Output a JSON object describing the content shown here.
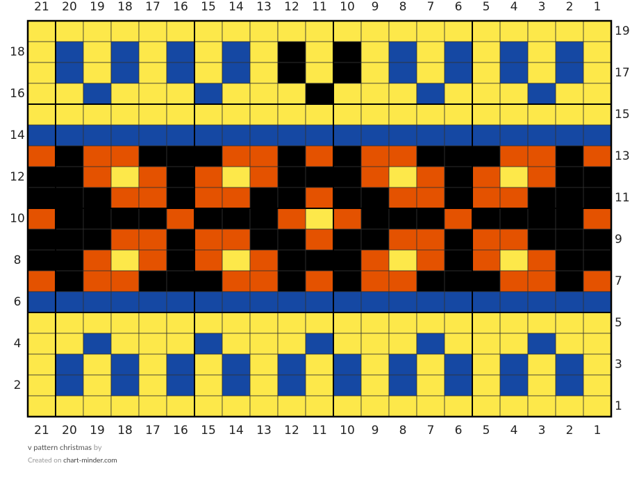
{
  "grid": {
    "columns": [
      21,
      20,
      19,
      18,
      17,
      16,
      15,
      14,
      13,
      12,
      11,
      10,
      9,
      8,
      7,
      6,
      5,
      4,
      3,
      2,
      1
    ],
    "row_numbers": [
      19,
      18,
      17,
      16,
      15,
      14,
      13,
      12,
      11,
      10,
      9,
      8,
      7,
      6,
      5,
      4,
      3,
      2,
      1
    ],
    "palette": {
      "Y": "#fde84a",
      "B": "#1548a3",
      "K": "#000000",
      "O": "#e45200"
    },
    "rows": [
      "YYYYYYYYYYYYYYYYYYYYY",
      "YBYBYBYBYKYKYBYBYBYBY",
      "YBYBYBYBYKYKYBYBYBYBY",
      "YYBYYYBYYYKYYYBYYYBYY",
      "YYYYYYYYYYYYYYYYYYYYY",
      "BBBBBBBBBBBBBBBBBBBBB",
      "OKOOKKKOOKOKOOKKKOOKO",
      "KKOYOKOYOKKKOYOKOYOKK",
      "KKKOOKOOKKOKKOOKOOKKK",
      "OKKKKOKKKOYOKKKOKKKKO",
      "KKKOOKOOKKOKKOOKOOKKK",
      "KKOYOKOYOKKKOYOKOYOKK",
      "OKOOKKKOOKOKOOKKKOOKO",
      "BBBBBBBBBBBBBBBBBBBBB",
      "YYYYYYYYYYYYYYYYYYYYY",
      "YYBYYYBYYYBYYYBYYYBYY",
      "YBYBYBYBYBYBYBYBYBYBY",
      "YBYBYBYBYBYBYBYBYBYBY",
      "YYYYYYYYYYYYYYYYYYYYY"
    ]
  },
  "footer": {
    "title": "v pattern christmas",
    "by": "by",
    "created": "Created on",
    "site": "chart-minder.com"
  }
}
